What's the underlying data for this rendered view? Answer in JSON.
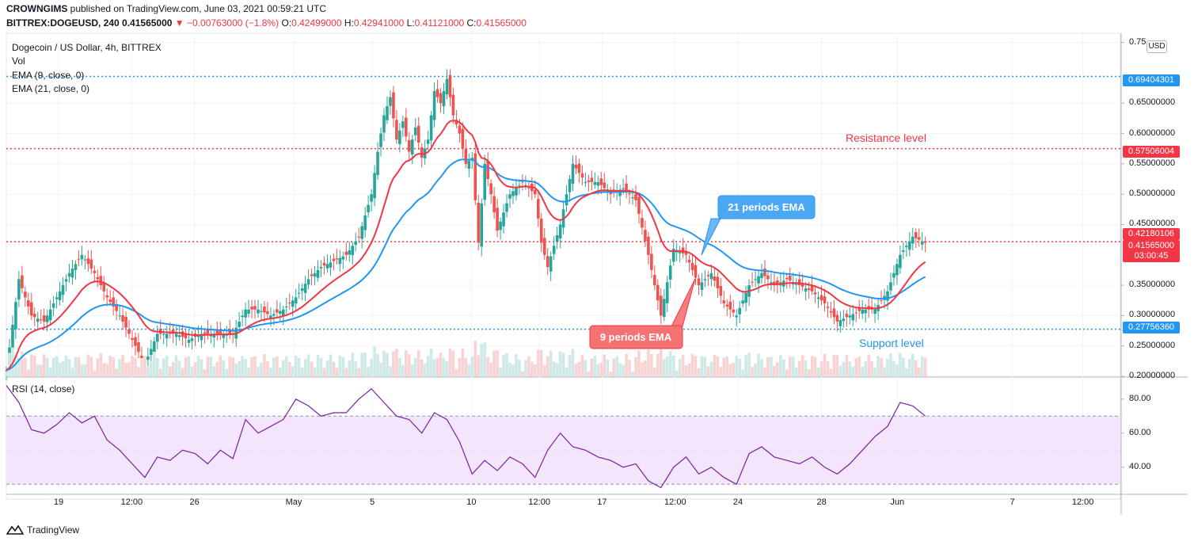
{
  "header": {
    "publisher": "CROWNGIMS",
    "published_text": " published on TradingView.com, June 03, 2021 00:59:21 UTC",
    "symbol": "BITTREX:DOGEUSD, 240",
    "last": "0.41565000",
    "change": "▼ −0.00763000 (−1.8%)",
    "o_label": "O:",
    "o_value": "0.42499000",
    "h_label": "H:",
    "h_value": "0.42941000",
    "l_label": "L:",
    "l_value": "0.41121000",
    "c_label": "C:",
    "c_value": "0.41565000"
  },
  "legend": {
    "title": "Dogecoin / US Dollar, 4h, BITTREX",
    "vol": "Vol",
    "ema9": "EMA (9, close, 0)",
    "ema21": "EMA (21, close, 0)",
    "rsi": "RSI (14, close)"
  },
  "currency": "USD",
  "badges": {
    "resistance_high": "0.69404301",
    "resistance": "0.57506004",
    "ema_level": "0.42180106",
    "last_price": "0.41565000",
    "countdown": "03:00:45",
    "support": "0.27756360"
  },
  "annotations": {
    "resistance": "Resistance level",
    "support": "Support level",
    "ema21": "21 periods EMA",
    "ema9": "9 periods EMA"
  },
  "footer": {
    "brand": "TradingView"
  },
  "colors": {
    "up": "#26a69a",
    "down": "#ef5350",
    "ema9": "#f23645",
    "ema21": "#2196f3",
    "rsi": "#7b1fa2",
    "rsi_band": "#f3e5fb",
    "resistance": "#f23645",
    "support": "#2196f3"
  },
  "chart_data": [
    {
      "type": "candlestick",
      "title": "Dogecoin / US Dollar, 4h, BITTREX",
      "y_ticks": [
        "0.75",
        "0.65000000",
        "0.60000000",
        "0.55000000",
        "0.50000000",
        "0.45000000",
        "0.35000000",
        "0.30000000",
        "0.25000000",
        "0.20000000"
      ],
      "x_ticks": [
        "19",
        "12:00",
        "26",
        "May",
        "5",
        "10",
        "12:00",
        "17",
        "12:00",
        "24",
        "28",
        "Jun",
        "7",
        "12:00"
      ],
      "ylim": [
        0.2,
        0.76
      ],
      "horizontal_levels": [
        {
          "label": "resistance_high",
          "value": 0.69404301
        },
        {
          "label": "Resistance level",
          "value": 0.57506004
        },
        {
          "label": "ema_level",
          "value": 0.42180106
        },
        {
          "label": "Support level",
          "value": 0.2775636
        }
      ],
      "close_path": [
        [
          0,
          0.21
        ],
        [
          2,
          0.36
        ],
        [
          4,
          0.3
        ],
        [
          6,
          0.29
        ],
        [
          8,
          0.33
        ],
        [
          10,
          0.37
        ],
        [
          12,
          0.4
        ],
        [
          14,
          0.37
        ],
        [
          16,
          0.33
        ],
        [
          18,
          0.3
        ],
        [
          20,
          0.26
        ],
        [
          22,
          0.22
        ],
        [
          24,
          0.27
        ],
        [
          27,
          0.27
        ],
        [
          29,
          0.26
        ],
        [
          31,
          0.27
        ],
        [
          34,
          0.27
        ],
        [
          36,
          0.27
        ],
        [
          38,
          0.31
        ],
        [
          40,
          0.31
        ],
        [
          42,
          0.3
        ],
        [
          44,
          0.31
        ],
        [
          46,
          0.33
        ],
        [
          48,
          0.36
        ],
        [
          50,
          0.38
        ],
        [
          52,
          0.39
        ],
        [
          54,
          0.4
        ],
        [
          56,
          0.43
        ],
        [
          58,
          0.5
        ],
        [
          59,
          0.57
        ],
        [
          60,
          0.63
        ],
        [
          61,
          0.66
        ],
        [
          62,
          0.59
        ],
        [
          63,
          0.62
        ],
        [
          64,
          0.57
        ],
        [
          65,
          0.61
        ],
        [
          66,
          0.56
        ],
        [
          67,
          0.59
        ],
        [
          68,
          0.67
        ],
        [
          69,
          0.65
        ],
        [
          70,
          0.69
        ],
        [
          71,
          0.63
        ],
        [
          72,
          0.6
        ],
        [
          73,
          0.55
        ],
        [
          74,
          0.56
        ],
        [
          75,
          0.42
        ],
        [
          76,
          0.55
        ],
        [
          77,
          0.5
        ],
        [
          78,
          0.44
        ],
        [
          80,
          0.5
        ],
        [
          82,
          0.52
        ],
        [
          84,
          0.5
        ],
        [
          85,
          0.42
        ],
        [
          86,
          0.38
        ],
        [
          88,
          0.45
        ],
        [
          90,
          0.55
        ],
        [
          92,
          0.52
        ],
        [
          94,
          0.52
        ],
        [
          96,
          0.5
        ],
        [
          98,
          0.51
        ],
        [
          100,
          0.49
        ],
        [
          102,
          0.4
        ],
        [
          103,
          0.35
        ],
        [
          104,
          0.3
        ],
        [
          106,
          0.41
        ],
        [
          108,
          0.4
        ],
        [
          110,
          0.35
        ],
        [
          112,
          0.37
        ],
        [
          114,
          0.32
        ],
        [
          116,
          0.3
        ],
        [
          118,
          0.35
        ],
        [
          120,
          0.37
        ],
        [
          122,
          0.35
        ],
        [
          124,
          0.36
        ],
        [
          126,
          0.35
        ],
        [
          128,
          0.34
        ],
        [
          130,
          0.32
        ],
        [
          132,
          0.29
        ],
        [
          134,
          0.3
        ],
        [
          136,
          0.31
        ],
        [
          138,
          0.31
        ],
        [
          140,
          0.34
        ],
        [
          142,
          0.4
        ],
        [
          144,
          0.43
        ],
        [
          146,
          0.42
        ]
      ],
      "ema9_label": "9 periods EMA",
      "ema21_label": "21 periods EMA"
    },
    {
      "type": "line",
      "title": "RSI (14, close)",
      "y_ticks": [
        "80.00",
        "60.00",
        "40.00"
      ],
      "ylim": [
        25,
        92
      ],
      "bands": [
        30,
        70
      ],
      "values": [
        [
          0,
          88
        ],
        [
          2,
          78
        ],
        [
          4,
          62
        ],
        [
          6,
          60
        ],
        [
          8,
          65
        ],
        [
          10,
          72
        ],
        [
          12,
          66
        ],
        [
          14,
          70
        ],
        [
          16,
          56
        ],
        [
          18,
          50
        ],
        [
          20,
          42
        ],
        [
          22,
          34
        ],
        [
          24,
          46
        ],
        [
          26,
          44
        ],
        [
          28,
          50
        ],
        [
          30,
          48
        ],
        [
          32,
          42
        ],
        [
          34,
          50
        ],
        [
          36,
          45
        ],
        [
          38,
          68
        ],
        [
          40,
          60
        ],
        [
          42,
          64
        ],
        [
          44,
          68
        ],
        [
          46,
          80
        ],
        [
          48,
          76
        ],
        [
          50,
          70
        ],
        [
          52,
          72
        ],
        [
          54,
          72
        ],
        [
          56,
          80
        ],
        [
          58,
          86
        ],
        [
          60,
          78
        ],
        [
          62,
          70
        ],
        [
          64,
          68
        ],
        [
          66,
          60
        ],
        [
          68,
          72
        ],
        [
          70,
          68
        ],
        [
          72,
          55
        ],
        [
          74,
          36
        ],
        [
          76,
          44
        ],
        [
          78,
          38
        ],
        [
          80,
          46
        ],
        [
          82,
          42
        ],
        [
          84,
          34
        ],
        [
          86,
          50
        ],
        [
          88,
          60
        ],
        [
          90,
          52
        ],
        [
          92,
          50
        ],
        [
          94,
          46
        ],
        [
          96,
          44
        ],
        [
          98,
          40
        ],
        [
          100,
          42
        ],
        [
          102,
          32
        ],
        [
          104,
          28
        ],
        [
          106,
          40
        ],
        [
          108,
          46
        ],
        [
          110,
          36
        ],
        [
          112,
          40
        ],
        [
          114,
          34
        ],
        [
          116,
          30
        ],
        [
          118,
          48
        ],
        [
          120,
          52
        ],
        [
          122,
          46
        ],
        [
          124,
          44
        ],
        [
          126,
          42
        ],
        [
          128,
          46
        ],
        [
          130,
          40
        ],
        [
          132,
          36
        ],
        [
          134,
          42
        ],
        [
          136,
          50
        ],
        [
          138,
          58
        ],
        [
          140,
          64
        ],
        [
          142,
          78
        ],
        [
          144,
          76
        ],
        [
          146,
          70
        ]
      ]
    }
  ]
}
